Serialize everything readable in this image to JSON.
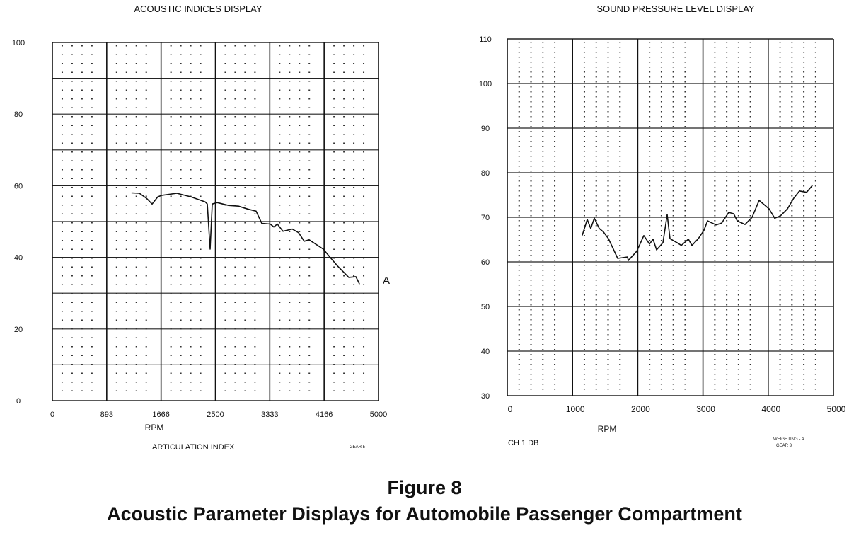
{
  "figure": {
    "label": "Figure 8",
    "caption": "Acoustic Parameter Displays for Automobile Passenger Compartment"
  },
  "chart_data": [
    {
      "type": "line",
      "title": "ACOUSTIC INDICES DISPLAY",
      "xlabel": "RPM",
      "ylabel": "",
      "xlim": [
        0,
        5000
      ],
      "ylim": [
        0,
        100
      ],
      "x_ticks": [
        "0",
        "893",
        "1666",
        "2500",
        "3333",
        "4166",
        "5000"
      ],
      "y_ticks": [
        "0",
        "20",
        "40",
        "60",
        "80",
        "100"
      ],
      "grid": true,
      "footer_left": "ARTICULATION INDEX",
      "footer_right": "GEAR 5",
      "series_label": "A",
      "color": "#111111",
      "x": [
        1215,
        1334,
        1443,
        1529,
        1616,
        1670,
        1909,
        2126,
        2343,
        2375,
        2419,
        2451,
        2527,
        2701,
        2852,
        2994,
        3124,
        3210,
        3341,
        3395,
        3449,
        3536,
        3677,
        3774,
        3861,
        3937,
        4154,
        4241,
        4371,
        4545,
        4653,
        4707
      ],
      "y": [
        58.0,
        57.9,
        56.5,
        54.9,
        56.9,
        57.3,
        57.9,
        56.9,
        55.5,
        54.9,
        42.3,
        54.9,
        55.3,
        54.5,
        54.3,
        53.5,
        52.9,
        49.5,
        49.3,
        48.5,
        49.3,
        47.3,
        47.9,
        46.9,
        44.5,
        44.9,
        42.3,
        40.4,
        37.6,
        34.4,
        34.6,
        32.6
      ]
    },
    {
      "type": "line",
      "title": "SOUND PRESSURE LEVEL DISPLAY",
      "xlabel": "RPM",
      "ylabel": "",
      "xlim": [
        0,
        5000
      ],
      "ylim": [
        30,
        110
      ],
      "x_ticks": [
        "0",
        "1000",
        "2000",
        "3000",
        "4000",
        "5000"
      ],
      "y_ticks": [
        "30",
        "40",
        "50",
        "60",
        "70",
        "80",
        "90",
        "100",
        "110"
      ],
      "grid": true,
      "footer_left": "CH 1 DB",
      "footer_right_1": "WEIGHTING - A",
      "footer_right_2": "GEAR 3",
      "color": "#111111",
      "x": [
        1150,
        1226,
        1280,
        1334,
        1410,
        1475,
        1551,
        1692,
        1844,
        1855,
        1985,
        2093,
        2180,
        2234,
        2289,
        2386,
        2451,
        2495,
        2603,
        2668,
        2777,
        2831,
        2928,
        3015,
        3069,
        3200,
        3286,
        3395,
        3471,
        3525,
        3644,
        3753,
        3861,
        4013,
        4100,
        4187,
        4295,
        4393,
        4479,
        4588,
        4675
      ],
      "y": [
        66.0,
        69.5,
        67.5,
        69.8,
        67.5,
        66.7,
        65.2,
        60.8,
        61.1,
        60.3,
        62.4,
        65.9,
        64.0,
        65.1,
        62.7,
        64.3,
        70.6,
        65.2,
        64.3,
        63.7,
        65.1,
        63.7,
        65.2,
        67.1,
        69.2,
        68.3,
        68.7,
        71.1,
        70.8,
        69.2,
        68.4,
        70.0,
        73.8,
        71.9,
        69.8,
        70.3,
        71.9,
        74.3,
        75.9,
        75.6,
        77.1
      ]
    }
  ]
}
